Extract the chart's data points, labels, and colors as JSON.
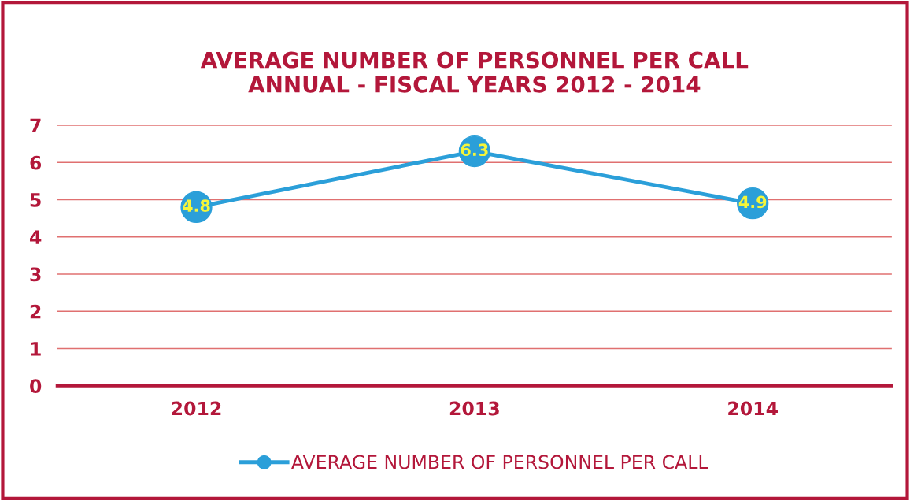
{
  "chart_data": {
    "type": "line",
    "title": "AVERAGE NUMBER OF PERSONNEL PER CALL\nANNUAL - FISCAL YEARS 2012 - 2014",
    "categories": [
      "2012",
      "2013",
      "2014"
    ],
    "series": [
      {
        "name": "AVERAGE NUMBER OF PERSONNEL PER CALL",
        "color": "#2b9fd9",
        "values": [
          4.8,
          6.3,
          4.9
        ]
      }
    ],
    "ylim": [
      0,
      7
    ],
    "yticks": [
      0,
      1,
      2,
      3,
      4,
      5,
      6,
      7
    ],
    "grid": "y",
    "legend": "bottom",
    "marker": "circle",
    "line_style": "solid",
    "data_labels": true
  }
}
